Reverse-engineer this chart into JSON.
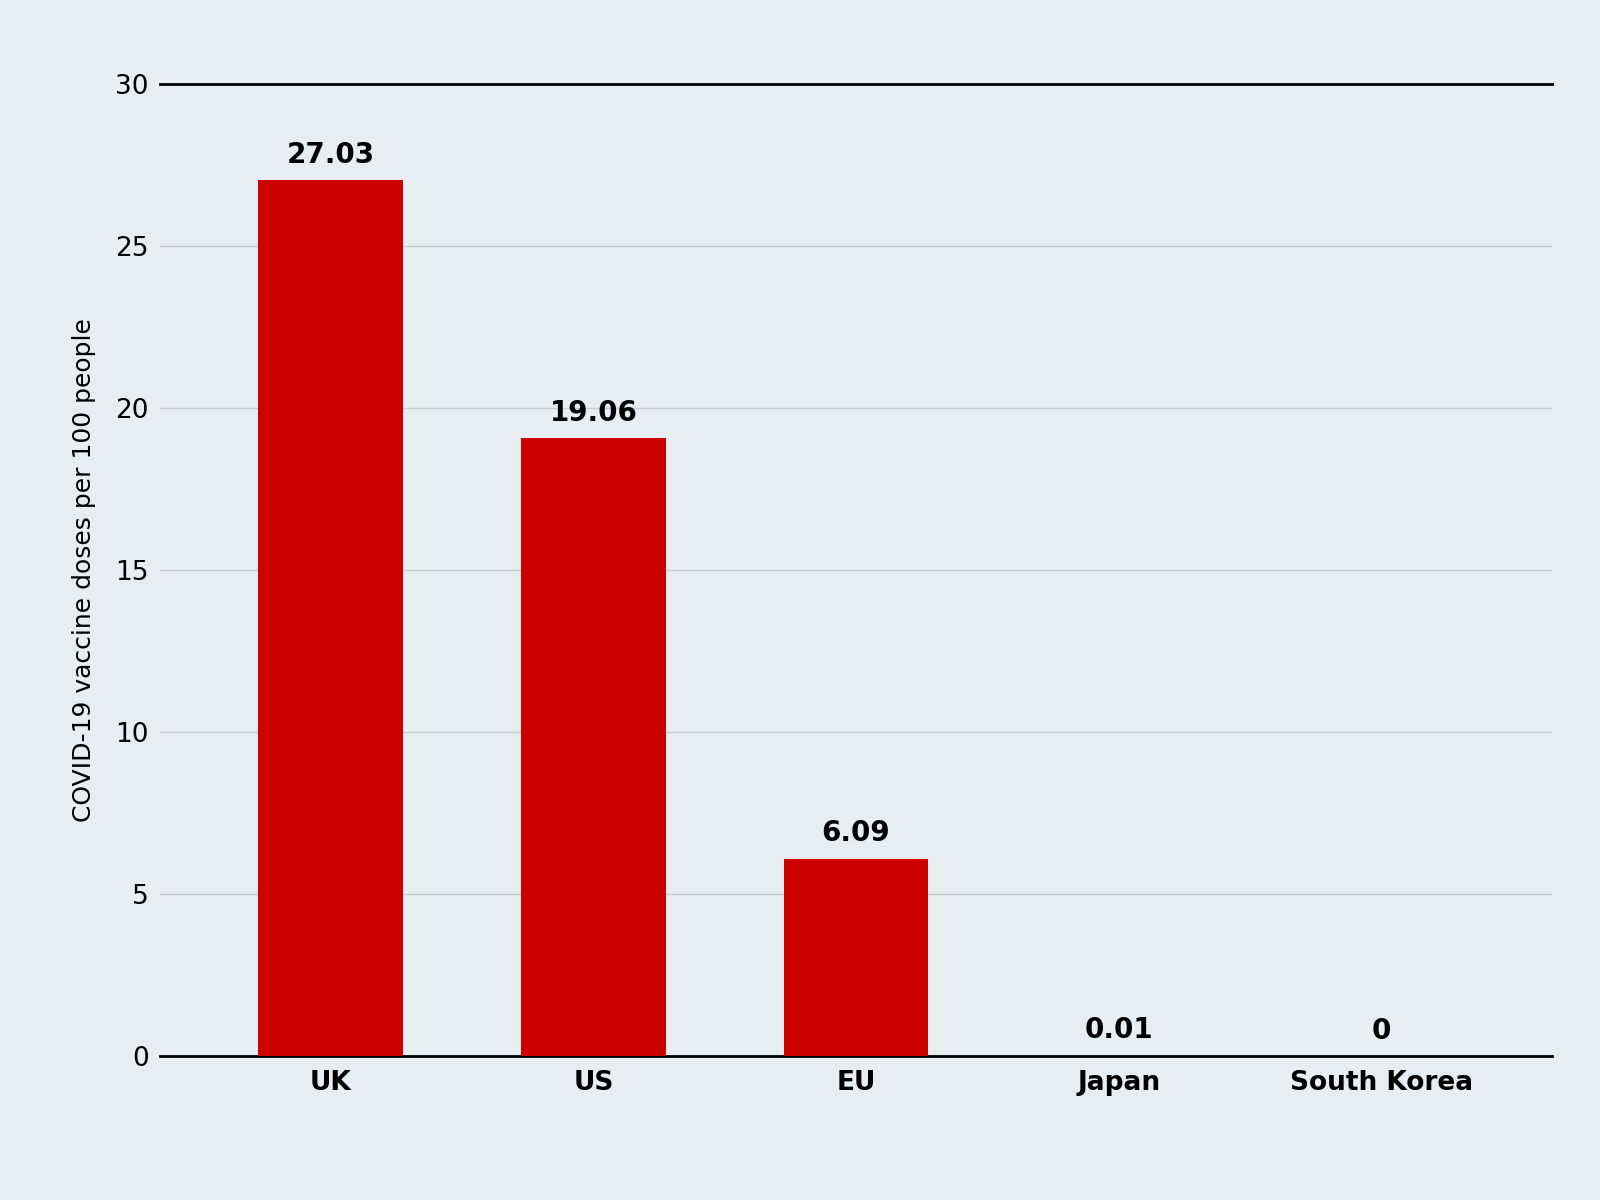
{
  "categories": [
    "UK",
    "US",
    "EU",
    "Japan",
    "South Korea"
  ],
  "values": [
    27.03,
    19.06,
    6.09,
    0.01,
    0
  ],
  "labels": [
    "27.03",
    "19.06",
    "6.09",
    "0.01",
    "0"
  ],
  "bar_color": "#cc0000",
  "background_color": "#e8edf2",
  "ylabel": "COVID-19 vaccine doses per 100 people",
  "ylim": [
    0,
    30
  ],
  "yticks": [
    0,
    5,
    10,
    15,
    20,
    25,
    30
  ],
  "grid_color": "#c8cdd2",
  "bar_width": 0.55,
  "label_fontsize": 20,
  "tick_fontsize": 19,
  "ylabel_fontsize": 18
}
